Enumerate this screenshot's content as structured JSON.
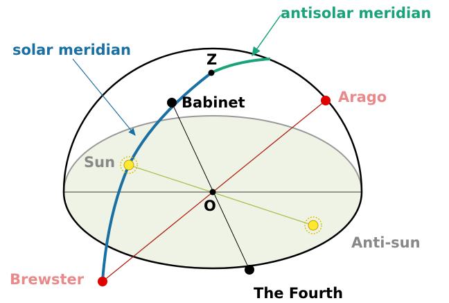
{
  "labels": {
    "antisolar": "antisolar meridian",
    "solar": "solar meridian",
    "zenith": "Z",
    "babinet": "Babinet",
    "arago": "Arago",
    "sun": "Sun",
    "origin": "O",
    "antisun": "Anti-sun",
    "brewster": "Brewster",
    "fourth": "The Fourth"
  }
}
